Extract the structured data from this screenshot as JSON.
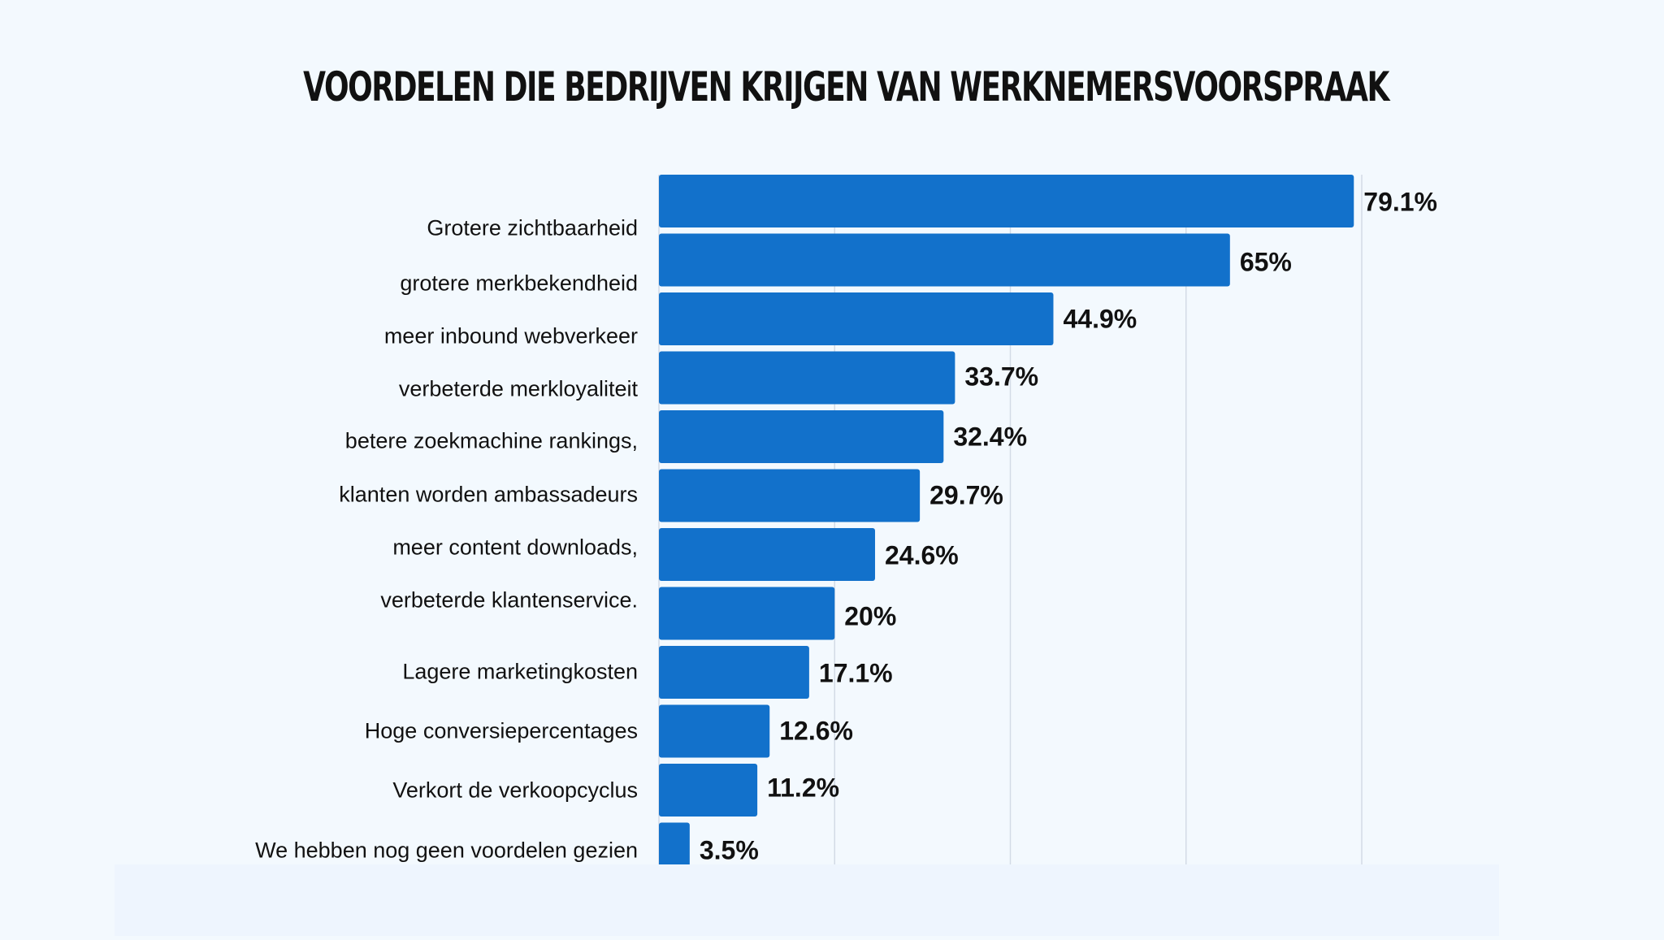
{
  "chart_data": {
    "type": "bar",
    "orientation": "horizontal",
    "title": "VOORDELEN DIE BEDRIJVEN KRIJGEN VAN WERKNEMERSVOORSPRAAK",
    "categories": [
      "Grotere zichtbaarheid",
      "grotere merkbekendheid",
      "meer inbound webverkeer",
      "verbeterde merkloyaliteit",
      "betere zoekmachine rankings,",
      "klanten worden ambassadeurs",
      "meer content downloads,",
      "verbeterde klantenservice.",
      "Lagere marketingkosten",
      "Hoge conversiepercentages",
      "Verkort de verkoopcyclus",
      "We hebben nog geen voordelen gezien"
    ],
    "values": [
      79.1,
      65,
      44.9,
      33.7,
      32.4,
      29.7,
      24.6,
      20,
      17.1,
      12.6,
      11.2,
      3.5
    ],
    "data_labels": [
      "79.1%",
      "65%",
      "44.9%",
      "33.7%",
      "32.4%",
      "29.7%",
      "24.6%",
      "20%",
      "17.1%",
      "12.6%",
      "11.2%",
      "3.5%"
    ],
    "xlim": [
      0,
      80
    ],
    "grid": true,
    "gridlines_every": 20,
    "bar_color": "#1271cb",
    "xlabel": "",
    "ylabel": ""
  }
}
